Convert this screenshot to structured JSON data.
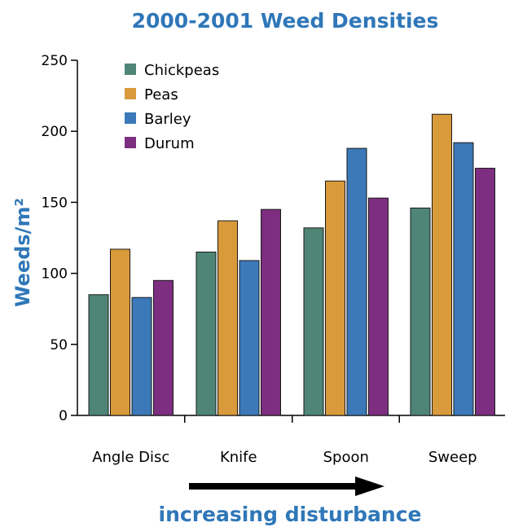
{
  "chart_data": {
    "type": "bar",
    "title": "2000-2001 Weed Densities",
    "ylabel": "Weeds/m²",
    "xlabel": "increasing disturbance",
    "categories": [
      "Angle Disc",
      "Knife",
      "Spoon",
      "Sweep"
    ],
    "series": [
      {
        "name": "Chickpeas",
        "values": [
          85,
          115,
          132,
          146
        ],
        "color": "#4e8576"
      },
      {
        "name": "Peas",
        "values": [
          117,
          137,
          165,
          212
        ],
        "color": "#d99a3b"
      },
      {
        "name": "Barley",
        "values": [
          83,
          109,
          188,
          192
        ],
        "color": "#3b79b8"
      },
      {
        "name": "Durum",
        "values": [
          95,
          145,
          153,
          174
        ],
        "color": "#7d2e80"
      }
    ],
    "ylim": [
      0,
      250
    ],
    "yticks": [
      0,
      50,
      100,
      150,
      200,
      250
    ],
    "legend": "top-left",
    "grid": false,
    "accent_color": "#2f77b8"
  }
}
